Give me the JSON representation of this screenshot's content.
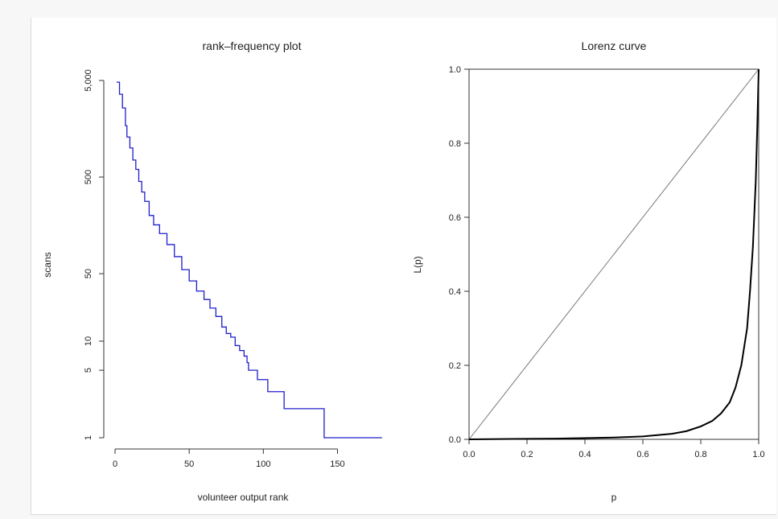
{
  "chart_data": [
    {
      "type": "line",
      "title": "rank–frequency plot",
      "xlabel": "volunteer output rank",
      "ylabel": "scans",
      "xlim": [
        0,
        185
      ],
      "ylim": [
        1,
        5000
      ],
      "log_y": true,
      "x_ticks": [
        0,
        50,
        100,
        150
      ],
      "x_tick_labels": [
        "0",
        "50",
        "100",
        "150"
      ],
      "y_ticks": [
        1,
        5,
        10,
        50,
        500,
        5000
      ],
      "y_tick_labels": [
        "1",
        "5",
        "10",
        "50",
        "500",
        "5,000"
      ],
      "grid": false,
      "legend": "none",
      "color": "#1f1fcc",
      "series": [
        {
          "x": [
            1,
            3,
            5,
            7,
            8,
            10,
            12,
            14,
            16,
            18,
            20,
            23,
            26,
            30,
            35,
            40,
            45,
            50,
            55,
            60,
            64,
            68,
            72,
            75,
            78,
            81,
            84,
            87,
            89,
            90,
            93,
            96,
            98,
            100,
            103,
            106,
            110,
            114,
            116,
            120,
            130,
            138,
            140,
            141,
            150,
            160,
            170,
            180
          ],
          "y": [
            4800,
            3600,
            2600,
            1700,
            1300,
            1000,
            750,
            600,
            450,
            350,
            280,
            200,
            160,
            130,
            100,
            75,
            55,
            42,
            33,
            27,
            22,
            18,
            14,
            12,
            11,
            9,
            8,
            7,
            6,
            5,
            5,
            4,
            4,
            4,
            3,
            3,
            3,
            2,
            2,
            2,
            2,
            2,
            2,
            1,
            1,
            1,
            1,
            1
          ]
        }
      ]
    },
    {
      "type": "line",
      "title": "Lorenz curve",
      "xlabel": "p",
      "ylabel": "L(p)",
      "xlim": [
        0,
        1
      ],
      "ylim": [
        0,
        1
      ],
      "x_ticks": [
        0,
        0.2,
        0.4,
        0.6,
        0.8,
        1
      ],
      "x_tick_labels": [
        "0.0",
        "0.2",
        "0.4",
        "0.6",
        "0.8",
        "1.0"
      ],
      "y_ticks": [
        0,
        0.2,
        0.4,
        0.6,
        0.8,
        1
      ],
      "y_tick_labels": [
        "0.0",
        "0.2",
        "0.4",
        "0.6",
        "0.8",
        "1.0"
      ],
      "grid": false,
      "legend": "none",
      "series": [
        {
          "x": [
            0,
            0.3,
            0.5,
            0.6,
            0.7,
            0.75,
            0.8,
            0.84,
            0.87,
            0.9,
            0.92,
            0.94,
            0.96,
            0.97,
            0.98,
            0.99,
            0.995,
            1.0
          ],
          "y": [
            0,
            0.002,
            0.005,
            0.008,
            0.015,
            0.022,
            0.035,
            0.05,
            0.07,
            0.1,
            0.14,
            0.2,
            0.3,
            0.4,
            0.52,
            0.7,
            0.84,
            1.0
          ]
        },
        {
          "x": [
            0,
            1
          ],
          "y": [
            0,
            1
          ]
        }
      ]
    }
  ]
}
